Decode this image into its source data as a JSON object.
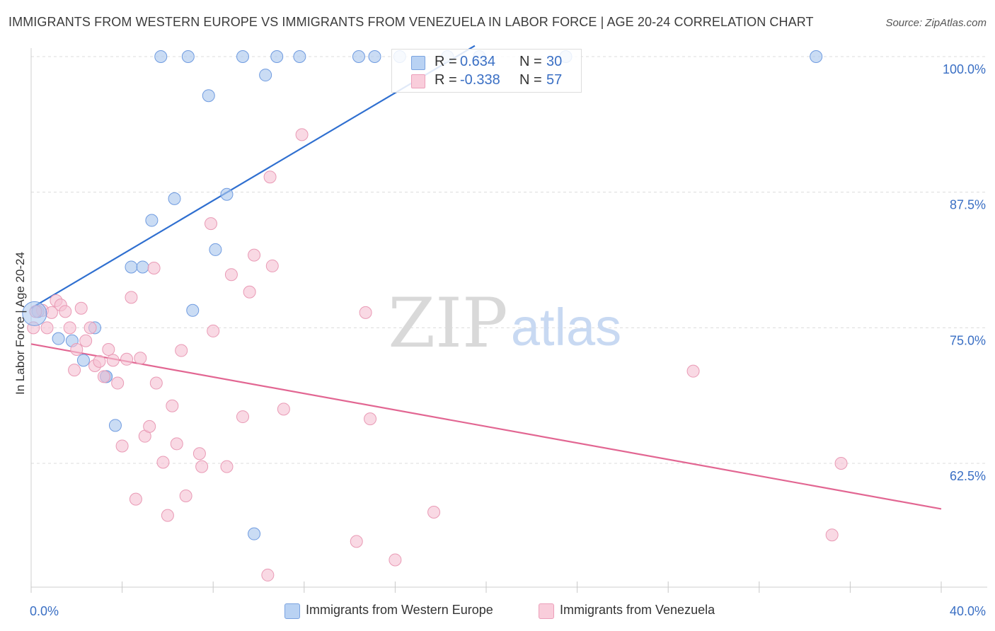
{
  "header": {
    "title": "IMMIGRANTS FROM WESTERN EUROPE VS IMMIGRANTS FROM VENEZUELA IN LABOR FORCE | AGE 20-24 CORRELATION CHART",
    "source": "Source: ZipAtlas.com"
  },
  "watermark": {
    "zip": "ZIP",
    "atlas": "atlas"
  },
  "legend": {
    "rows": [
      {
        "r_label": "R =",
        "r_value": "0.634",
        "n_label": "N =",
        "n_value": "30"
      },
      {
        "r_label": "R =",
        "r_value": "-0.338",
        "n_label": "N =",
        "n_value": "57"
      }
    ]
  },
  "chart_data": {
    "type": "scatter",
    "ylabel": "In Labor Force | Age 20-24",
    "xlim": [
      0,
      40
    ],
    "ylim": [
      52,
      101
    ],
    "x_tick_labels": [
      {
        "value": 0,
        "label": "0.0%"
      },
      {
        "value": 40,
        "label": "40.0%"
      }
    ],
    "y_tick_labels": [
      {
        "value": 62.5,
        "label": "62.5%"
      },
      {
        "value": 75.0,
        "label": "75.0%"
      },
      {
        "value": 87.5,
        "label": "87.5%"
      },
      {
        "value": 100.0,
        "label": "100.0%"
      }
    ],
    "x_minor_ticks": [
      0,
      4,
      8,
      12,
      16,
      20,
      24,
      28,
      32,
      36,
      40
    ],
    "grid": true,
    "series": [
      {
        "name": "Immigrants from Western Europe",
        "color": "#a9c6ee",
        "stroke": "#6f9be0",
        "trend": {
          "x": [
            0,
            19.5
          ],
          "y": [
            76.8,
            101.0
          ],
          "color": "#2f6fd0"
        },
        "points": [
          [
            0.3,
            76.5
          ],
          [
            1.2,
            74.0
          ],
          [
            1.8,
            73.8
          ],
          [
            2.3,
            72.0
          ],
          [
            2.8,
            75.0
          ],
          [
            3.3,
            70.5
          ],
          [
            3.7,
            66.0
          ],
          [
            4.4,
            80.6
          ],
          [
            4.9,
            80.6
          ],
          [
            5.3,
            84.9
          ],
          [
            6.3,
            86.9
          ],
          [
            7.1,
            76.6
          ],
          [
            8.1,
            82.2
          ],
          [
            8.6,
            87.3
          ],
          [
            5.7,
            100.0
          ],
          [
            6.9,
            100.0
          ],
          [
            9.3,
            100.0
          ],
          [
            10.8,
            100.0
          ],
          [
            11.8,
            100.0
          ],
          [
            14.4,
            100.0
          ],
          [
            15.1,
            100.0
          ],
          [
            16.2,
            100.0
          ],
          [
            18.3,
            100.0
          ],
          [
            19.7,
            100.0
          ],
          [
            23.5,
            100.0
          ],
          [
            34.5,
            100.0
          ],
          [
            10.3,
            98.3
          ],
          [
            7.8,
            96.4
          ],
          [
            9.8,
            56.0
          ],
          [
            3.3,
            70.5
          ]
        ]
      },
      {
        "name": "Immigrants from Venezuela",
        "color": "#f6c2d3",
        "stroke": "#e99ab5",
        "trend": {
          "x": [
            0,
            40
          ],
          "y": [
            73.5,
            58.3
          ],
          "color": "#e26692"
        },
        "points": [
          [
            0.1,
            75.0
          ],
          [
            0.5,
            76.6
          ],
          [
            0.7,
            75.0
          ],
          [
            0.9,
            76.4
          ],
          [
            1.1,
            77.5
          ],
          [
            1.3,
            77.1
          ],
          [
            1.5,
            76.5
          ],
          [
            1.7,
            75.0
          ],
          [
            1.9,
            71.1
          ],
          [
            2.0,
            73.0
          ],
          [
            2.2,
            76.8
          ],
          [
            2.4,
            73.8
          ],
          [
            2.6,
            75.0
          ],
          [
            2.8,
            71.5
          ],
          [
            3.0,
            71.9
          ],
          [
            3.2,
            70.5
          ],
          [
            3.4,
            73.0
          ],
          [
            3.6,
            72.0
          ],
          [
            3.8,
            69.9
          ],
          [
            4.0,
            64.1
          ],
          [
            4.2,
            72.1
          ],
          [
            4.4,
            77.8
          ],
          [
            4.6,
            59.2
          ],
          [
            4.8,
            72.2
          ],
          [
            5.0,
            65.0
          ],
          [
            5.2,
            65.9
          ],
          [
            5.4,
            80.5
          ],
          [
            5.5,
            69.9
          ],
          [
            5.8,
            62.6
          ],
          [
            6.0,
            57.7
          ],
          [
            6.2,
            67.8
          ],
          [
            6.4,
            64.3
          ],
          [
            6.6,
            72.9
          ],
          [
            6.8,
            59.5
          ],
          [
            7.4,
            63.4
          ],
          [
            7.5,
            62.2
          ],
          [
            7.9,
            84.6
          ],
          [
            8.0,
            74.7
          ],
          [
            8.6,
            62.2
          ],
          [
            8.8,
            79.9
          ],
          [
            9.3,
            66.8
          ],
          [
            9.6,
            78.3
          ],
          [
            9.8,
            81.7
          ],
          [
            10.4,
            52.2
          ],
          [
            10.5,
            88.9
          ],
          [
            10.6,
            80.7
          ],
          [
            11.1,
            67.5
          ],
          [
            11.9,
            92.8
          ],
          [
            14.3,
            55.3
          ],
          [
            14.7,
            76.4
          ],
          [
            14.9,
            66.6
          ],
          [
            16.0,
            53.6
          ],
          [
            17.7,
            58.0
          ],
          [
            29.1,
            71.0
          ],
          [
            35.2,
            55.9
          ],
          [
            35.6,
            62.5
          ],
          [
            0.2,
            76.5
          ]
        ]
      }
    ]
  }
}
